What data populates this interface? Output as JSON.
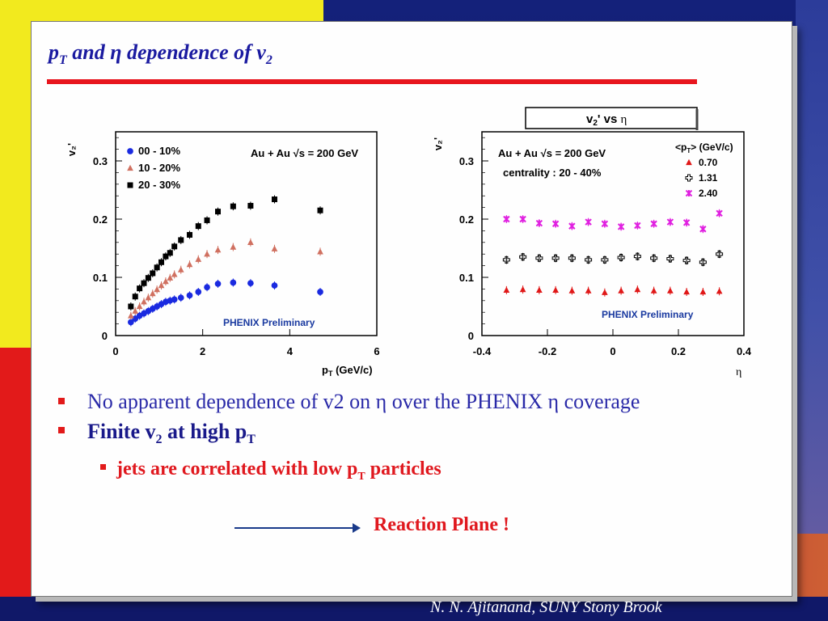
{
  "slide": {
    "title_main": "p",
    "title_sub": "T",
    "title_rest": " and η dependence of v",
    "title_sub2": "2"
  },
  "bullets": {
    "b1": "No apparent dependence of v2  on  η over the PHENIX η coverage",
    "b2_main": "Finite v",
    "b2_sub": "2",
    "b2_rest": " at high p",
    "b2_sub2": "T",
    "b3_main": "jets are correlated with low p",
    "b3_sub": "T",
    "b3_rest": " particles",
    "reaction": "Reaction Plane !"
  },
  "footer": "N. N. Ajitanand, SUNY  Stony Brook",
  "chart_data": [
    {
      "type": "scatter",
      "ylabel": "v2'",
      "xlabel": "pT (GeV/c)",
      "annotation": "Au + Au √s = 200 GeV",
      "watermark": "PHENIX Preliminary",
      "xlim": [
        0,
        6
      ],
      "ylim": [
        0,
        0.35
      ],
      "xticks": [
        "0",
        "2",
        "4",
        "6"
      ],
      "yticks": [
        "0",
        "0.1",
        "0.2",
        "0.3"
      ],
      "series": [
        {
          "name": "00 - 10%",
          "marker": "circle",
          "color": "#1a2ae0",
          "x": [
            0.35,
            0.45,
            0.55,
            0.65,
            0.75,
            0.85,
            0.95,
            1.05,
            1.15,
            1.25,
            1.35,
            1.5,
            1.7,
            1.9,
            2.1,
            2.35,
            2.7,
            3.1,
            3.65,
            4.7
          ],
          "y": [
            0.023,
            0.029,
            0.034,
            0.038,
            0.042,
            0.046,
            0.05,
            0.054,
            0.058,
            0.06,
            0.062,
            0.065,
            0.069,
            0.075,
            0.083,
            0.089,
            0.091,
            0.09,
            0.086,
            0.075
          ]
        },
        {
          "name": "10 - 20%",
          "marker": "triangle",
          "color": "#d07060",
          "x": [
            0.35,
            0.45,
            0.55,
            0.65,
            0.75,
            0.85,
            0.95,
            1.05,
            1.15,
            1.25,
            1.35,
            1.5,
            1.7,
            1.9,
            2.1,
            2.35,
            2.7,
            3.1,
            3.65,
            4.7
          ],
          "y": [
            0.034,
            0.042,
            0.05,
            0.058,
            0.065,
            0.072,
            0.079,
            0.086,
            0.093,
            0.099,
            0.105,
            0.113,
            0.122,
            0.131,
            0.14,
            0.147,
            0.152,
            0.16,
            0.149,
            0.144
          ]
        },
        {
          "name": "20 - 30%",
          "marker": "square",
          "color": "#000000",
          "x": [
            0.35,
            0.45,
            0.55,
            0.65,
            0.75,
            0.85,
            0.95,
            1.05,
            1.15,
            1.25,
            1.35,
            1.5,
            1.7,
            1.9,
            2.1,
            2.35,
            2.7,
            3.1,
            3.65,
            4.7
          ],
          "y": [
            0.05,
            0.067,
            0.081,
            0.09,
            0.099,
            0.107,
            0.117,
            0.126,
            0.136,
            0.142,
            0.153,
            0.164,
            0.173,
            0.188,
            0.198,
            0.213,
            0.222,
            0.223,
            0.234,
            0.215
          ]
        }
      ]
    },
    {
      "type": "scatter",
      "title": "v2' vs η",
      "ylabel": "v2'",
      "xlabel": "η",
      "annotation": "Au + Au √s = 200 GeV",
      "annotation2": "centrality : 20 - 40%",
      "legend_title": "<pT> (GeV/c)",
      "watermark": "PHENIX Preliminary",
      "xlim": [
        -0.4,
        0.4
      ],
      "ylim": [
        0,
        0.35
      ],
      "xticks": [
        "-0.4",
        "-0.2",
        "0",
        "0.2",
        "0.4"
      ],
      "yticks": [
        "0",
        "0.1",
        "0.2",
        "0.3"
      ],
      "series": [
        {
          "name": "0.70",
          "marker": "triangle",
          "color": "#e01818",
          "x": [
            -0.325,
            -0.275,
            -0.225,
            -0.175,
            -0.125,
            -0.075,
            -0.025,
            0.025,
            0.075,
            0.125,
            0.175,
            0.225,
            0.275,
            0.325
          ],
          "y": [
            0.078,
            0.079,
            0.078,
            0.078,
            0.077,
            0.077,
            0.074,
            0.077,
            0.079,
            0.077,
            0.077,
            0.075,
            0.075,
            0.076
          ]
        },
        {
          "name": "1.31",
          "marker": "open-cross",
          "color": "#000000",
          "x": [
            -0.325,
            -0.275,
            -0.225,
            -0.175,
            -0.125,
            -0.075,
            -0.025,
            0.025,
            0.075,
            0.125,
            0.175,
            0.225,
            0.275,
            0.325
          ],
          "y": [
            0.13,
            0.135,
            0.133,
            0.133,
            0.133,
            0.13,
            0.13,
            0.134,
            0.136,
            0.133,
            0.132,
            0.129,
            0.126,
            0.14
          ]
        },
        {
          "name": "2.40",
          "marker": "star",
          "color": "#e020e0",
          "x": [
            -0.325,
            -0.275,
            -0.225,
            -0.175,
            -0.125,
            -0.075,
            -0.025,
            0.025,
            0.075,
            0.125,
            0.175,
            0.225,
            0.275,
            0.325
          ],
          "y": [
            0.2,
            0.2,
            0.193,
            0.192,
            0.188,
            0.195,
            0.192,
            0.187,
            0.189,
            0.192,
            0.195,
            0.194,
            0.183,
            0.21
          ]
        }
      ]
    }
  ]
}
